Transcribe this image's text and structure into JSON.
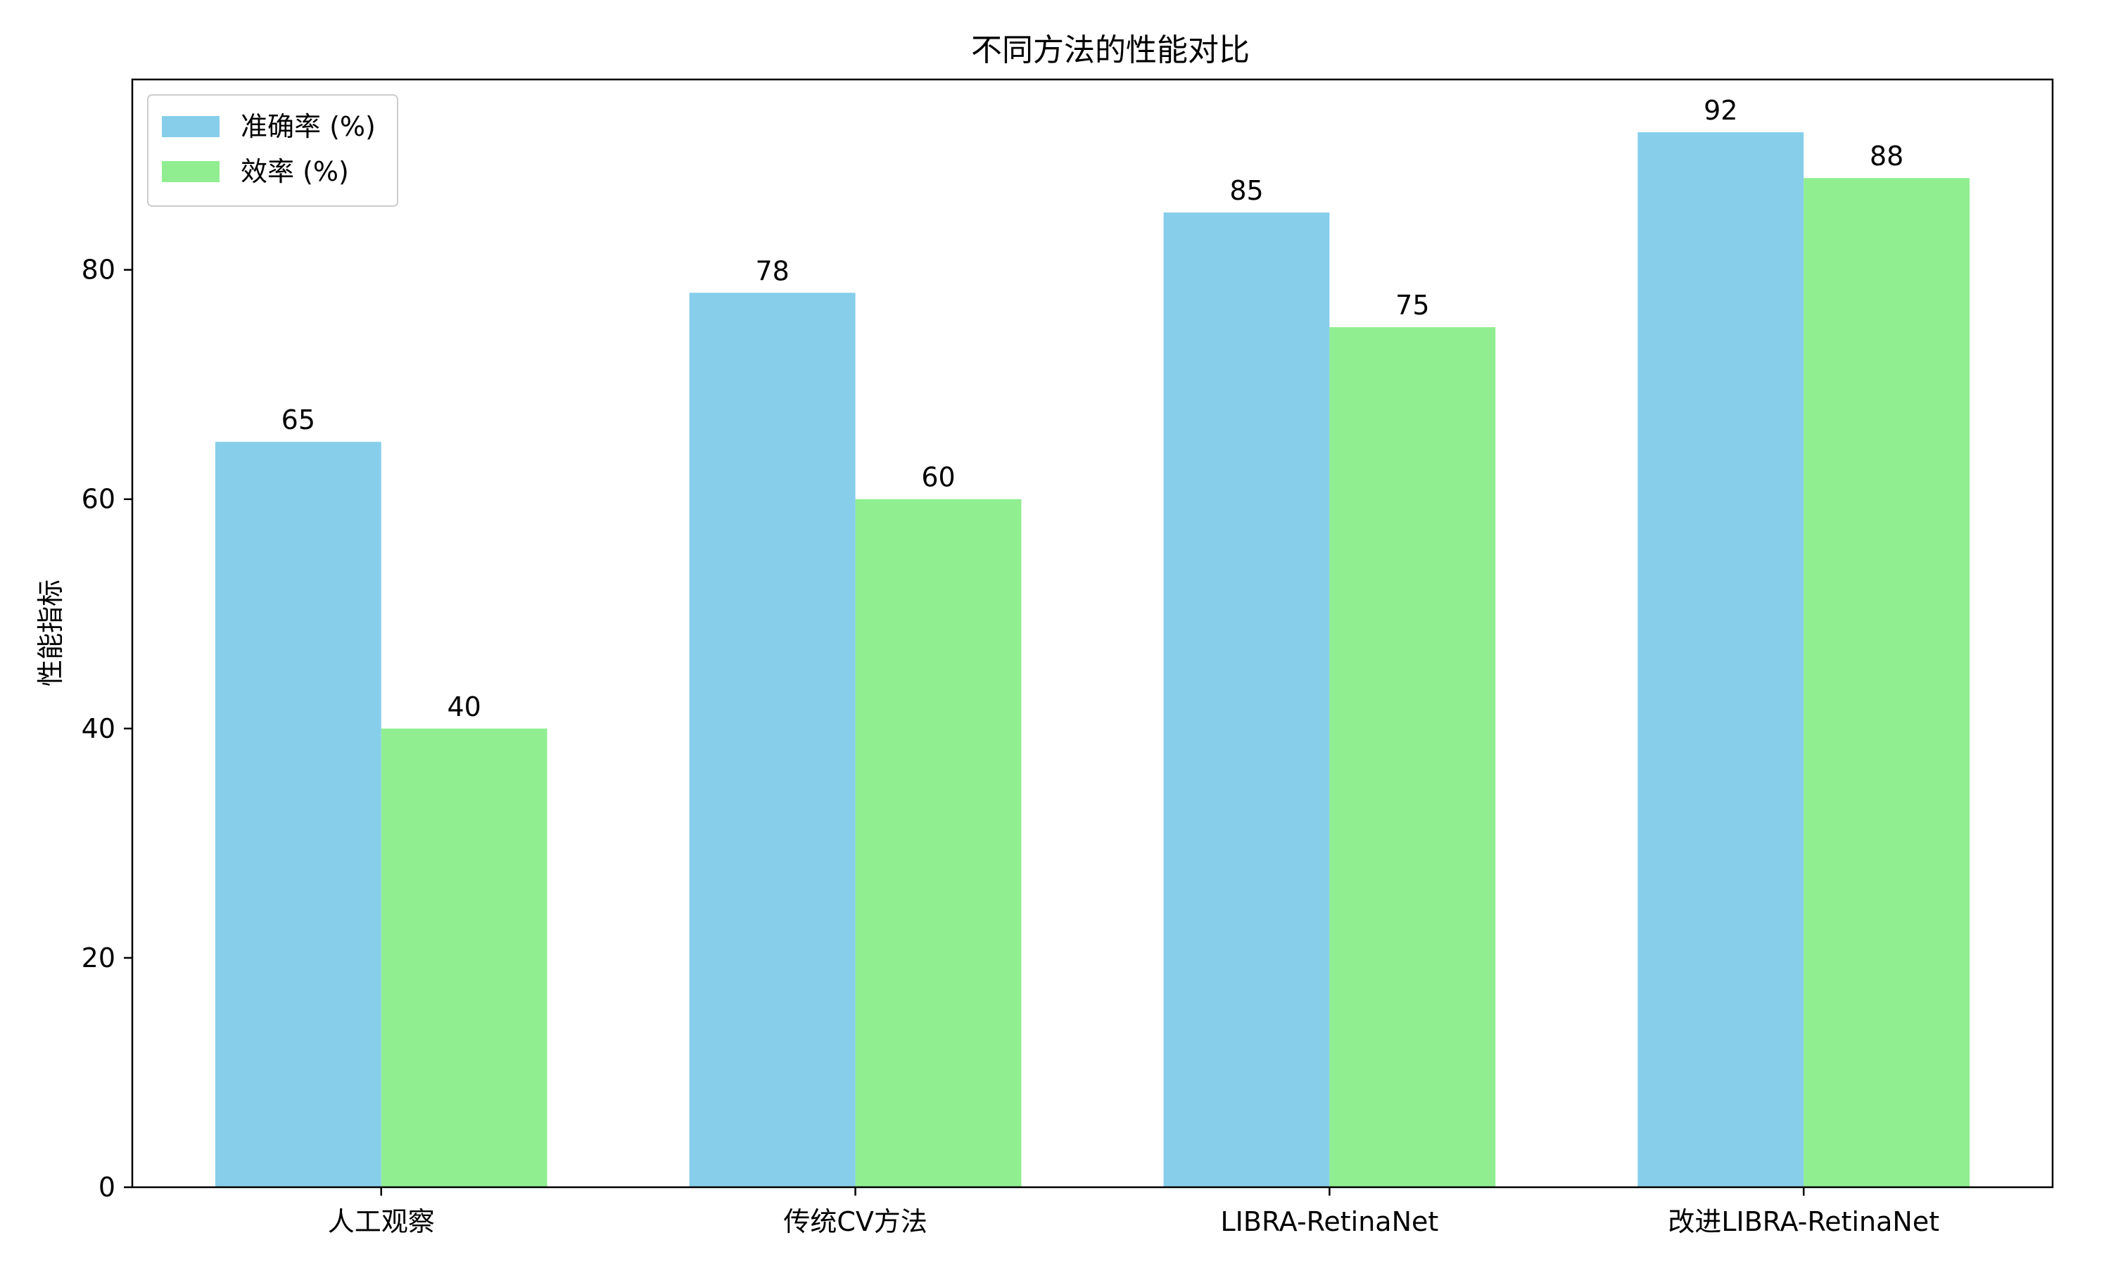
{
  "chart_data": {
    "type": "bar",
    "title": "不同方法的性能对比",
    "xlabel": "",
    "ylabel": "性能指标",
    "categories": [
      "人工观察",
      "传统CV方法",
      "LIBRA-RetinaNet",
      "改进LIBRA-RetinaNet"
    ],
    "series": [
      {
        "name": "准确率 (%)",
        "values": [
          65,
          78,
          85,
          92
        ],
        "color": "#87CEEB"
      },
      {
        "name": "效率 (%)",
        "values": [
          40,
          60,
          75,
          88
        ],
        "color": "#90EE90"
      }
    ],
    "ylim": [
      0,
      96.6
    ],
    "yticks": [
      0,
      20,
      40,
      60,
      80
    ],
    "grid": false,
    "legend_position": "top-left"
  }
}
